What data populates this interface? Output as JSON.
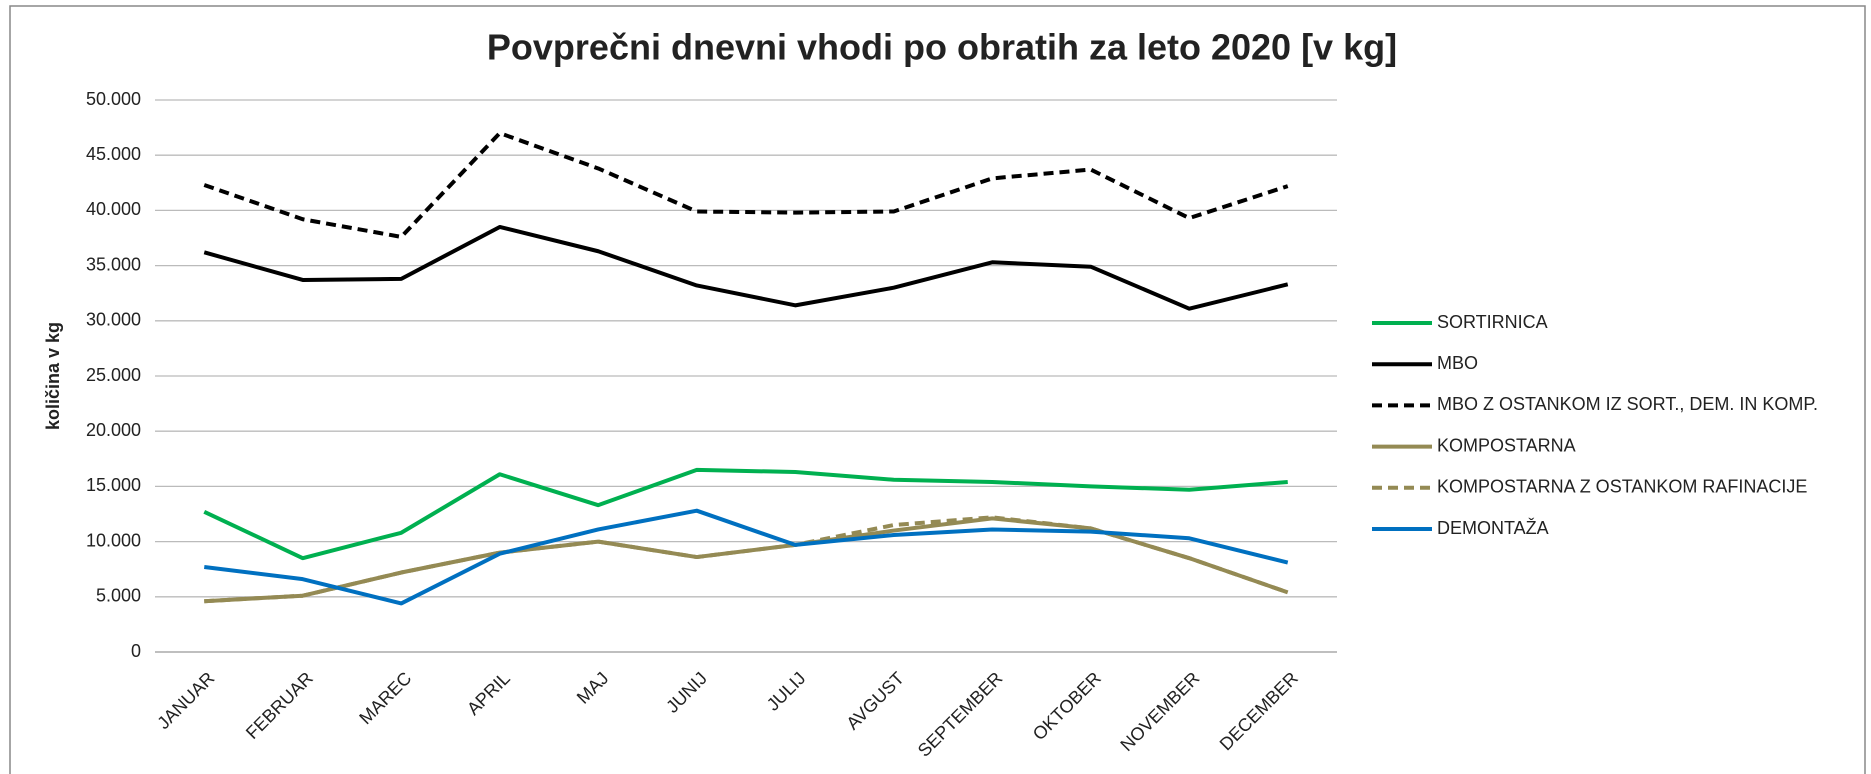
{
  "chart_data": {
    "type": "line",
    "title": "Povprečni dnevni vhodi po obratih za leto 2020 [v kg]",
    "y_label": "količina v kg",
    "categories": [
      "JANUAR",
      "FEBRUAR",
      "MAREC",
      "APRIL",
      "MAJ",
      "JUNIJ",
      "JULIJ",
      "AVGUST",
      "SEPTEMBER",
      "OKTOBER",
      "NOVEMBER",
      "DECEMBER"
    ],
    "series": [
      {
        "name": "SORTIRNICA",
        "color": "#00b050",
        "dash": false,
        "values": [
          12700,
          8500,
          10800,
          16100,
          13300,
          16500,
          16300,
          15600,
          15400,
          15000,
          14700,
          15400
        ]
      },
      {
        "name": "MBO",
        "color": "#000000",
        "dash": false,
        "values": [
          36200,
          33700,
          33800,
          38500,
          36300,
          33200,
          31400,
          33000,
          35300,
          34900,
          31100,
          33300
        ]
      },
      {
        "name": "MBO Z OSTANKOM IZ SORT., DEM. IN KOMP.",
        "color": "#000000",
        "dash": true,
        "values": [
          42300,
          39200,
          37600,
          47000,
          43800,
          39900,
          39800,
          39900,
          42900,
          43700,
          39300,
          42200
        ]
      },
      {
        "name": "KOMPOSTARNA",
        "color": "#948a54",
        "dash": false,
        "values": [
          4600,
          5100,
          7200,
          9000,
          10000,
          8600,
          9700,
          11000,
          12100,
          11200,
          8500,
          5400
        ]
      },
      {
        "name": "KOMPOSTARNA Z OSTANKOM RAFINACIJE",
        "color": "#948a54",
        "dash": true,
        "values": [
          4600,
          5100,
          7200,
          9000,
          10000,
          8600,
          9700,
          11500,
          12200,
          11200,
          8500,
          5400
        ]
      },
      {
        "name": "DEMONTAŽA",
        "color": "#0070c0",
        "dash": false,
        "values": [
          7700,
          6600,
          4400,
          8900,
          11100,
          12800,
          9700,
          10600,
          11100,
          10900,
          10300,
          8100
        ]
      }
    ],
    "ylim": [
      0,
      50000
    ],
    "yticks": [
      0,
      {
        "value": 5000,
        "label": "5.000"
      },
      {
        "value": 10000,
        "label": "10.000"
      },
      {
        "value": 15000,
        "label": "15.000"
      },
      {
        "value": 20000,
        "label": "20.000"
      },
      {
        "value": 25000,
        "label": "25.000"
      },
      {
        "value": 30000,
        "label": "30.000"
      },
      {
        "value": 35000,
        "label": "35.000"
      },
      {
        "value": 40000,
        "label": "40.000"
      },
      {
        "value": 45000,
        "label": "45.000"
      },
      {
        "value": 50000,
        "label": "50.000"
      }
    ],
    "grid": true,
    "legend": "right"
  }
}
